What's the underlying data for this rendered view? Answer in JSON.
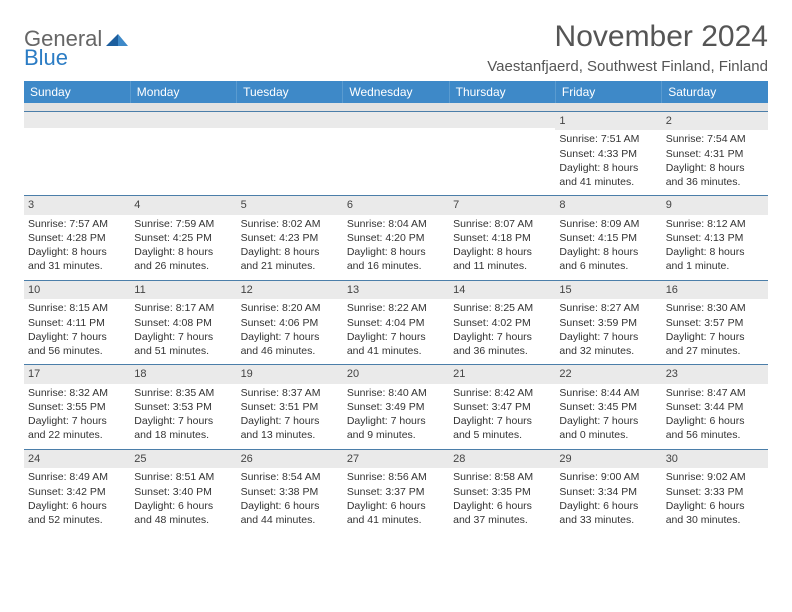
{
  "logo": {
    "text1": "General",
    "text2": "Blue"
  },
  "title": "November 2024",
  "location": "Vaestanfjaerd, Southwest Finland, Finland",
  "colors": {
    "header_bg": "#3e89c8",
    "header_text": "#ffffff",
    "daynum_bg": "#eaeaea",
    "border": "#4b7ea9",
    "logo_blue": "#2b7cc4"
  },
  "day_headers": [
    "Sunday",
    "Monday",
    "Tuesday",
    "Wednesday",
    "Thursday",
    "Friday",
    "Saturday"
  ],
  "weeks": [
    [
      null,
      null,
      null,
      null,
      null,
      {
        "n": "1",
        "sr": "7:51 AM",
        "ss": "4:33 PM",
        "dl": "8 hours and 41 minutes."
      },
      {
        "n": "2",
        "sr": "7:54 AM",
        "ss": "4:31 PM",
        "dl": "8 hours and 36 minutes."
      }
    ],
    [
      {
        "n": "3",
        "sr": "7:57 AM",
        "ss": "4:28 PM",
        "dl": "8 hours and 31 minutes."
      },
      {
        "n": "4",
        "sr": "7:59 AM",
        "ss": "4:25 PM",
        "dl": "8 hours and 26 minutes."
      },
      {
        "n": "5",
        "sr": "8:02 AM",
        "ss": "4:23 PM",
        "dl": "8 hours and 21 minutes."
      },
      {
        "n": "6",
        "sr": "8:04 AM",
        "ss": "4:20 PM",
        "dl": "8 hours and 16 minutes."
      },
      {
        "n": "7",
        "sr": "8:07 AM",
        "ss": "4:18 PM",
        "dl": "8 hours and 11 minutes."
      },
      {
        "n": "8",
        "sr": "8:09 AM",
        "ss": "4:15 PM",
        "dl": "8 hours and 6 minutes."
      },
      {
        "n": "9",
        "sr": "8:12 AM",
        "ss": "4:13 PM",
        "dl": "8 hours and 1 minute."
      }
    ],
    [
      {
        "n": "10",
        "sr": "8:15 AM",
        "ss": "4:11 PM",
        "dl": "7 hours and 56 minutes."
      },
      {
        "n": "11",
        "sr": "8:17 AM",
        "ss": "4:08 PM",
        "dl": "7 hours and 51 minutes."
      },
      {
        "n": "12",
        "sr": "8:20 AM",
        "ss": "4:06 PM",
        "dl": "7 hours and 46 minutes."
      },
      {
        "n": "13",
        "sr": "8:22 AM",
        "ss": "4:04 PM",
        "dl": "7 hours and 41 minutes."
      },
      {
        "n": "14",
        "sr": "8:25 AM",
        "ss": "4:02 PM",
        "dl": "7 hours and 36 minutes."
      },
      {
        "n": "15",
        "sr": "8:27 AM",
        "ss": "3:59 PM",
        "dl": "7 hours and 32 minutes."
      },
      {
        "n": "16",
        "sr": "8:30 AM",
        "ss": "3:57 PM",
        "dl": "7 hours and 27 minutes."
      }
    ],
    [
      {
        "n": "17",
        "sr": "8:32 AM",
        "ss": "3:55 PM",
        "dl": "7 hours and 22 minutes."
      },
      {
        "n": "18",
        "sr": "8:35 AM",
        "ss": "3:53 PM",
        "dl": "7 hours and 18 minutes."
      },
      {
        "n": "19",
        "sr": "8:37 AM",
        "ss": "3:51 PM",
        "dl": "7 hours and 13 minutes."
      },
      {
        "n": "20",
        "sr": "8:40 AM",
        "ss": "3:49 PM",
        "dl": "7 hours and 9 minutes."
      },
      {
        "n": "21",
        "sr": "8:42 AM",
        "ss": "3:47 PM",
        "dl": "7 hours and 5 minutes."
      },
      {
        "n": "22",
        "sr": "8:44 AM",
        "ss": "3:45 PM",
        "dl": "7 hours and 0 minutes."
      },
      {
        "n": "23",
        "sr": "8:47 AM",
        "ss": "3:44 PM",
        "dl": "6 hours and 56 minutes."
      }
    ],
    [
      {
        "n": "24",
        "sr": "8:49 AM",
        "ss": "3:42 PM",
        "dl": "6 hours and 52 minutes."
      },
      {
        "n": "25",
        "sr": "8:51 AM",
        "ss": "3:40 PM",
        "dl": "6 hours and 48 minutes."
      },
      {
        "n": "26",
        "sr": "8:54 AM",
        "ss": "3:38 PM",
        "dl": "6 hours and 44 minutes."
      },
      {
        "n": "27",
        "sr": "8:56 AM",
        "ss": "3:37 PM",
        "dl": "6 hours and 41 minutes."
      },
      {
        "n": "28",
        "sr": "8:58 AM",
        "ss": "3:35 PM",
        "dl": "6 hours and 37 minutes."
      },
      {
        "n": "29",
        "sr": "9:00 AM",
        "ss": "3:34 PM",
        "dl": "6 hours and 33 minutes."
      },
      {
        "n": "30",
        "sr": "9:02 AM",
        "ss": "3:33 PM",
        "dl": "6 hours and 30 minutes."
      }
    ]
  ],
  "labels": {
    "sunrise": "Sunrise: ",
    "sunset": "Sunset: ",
    "daylight": "Daylight: "
  }
}
